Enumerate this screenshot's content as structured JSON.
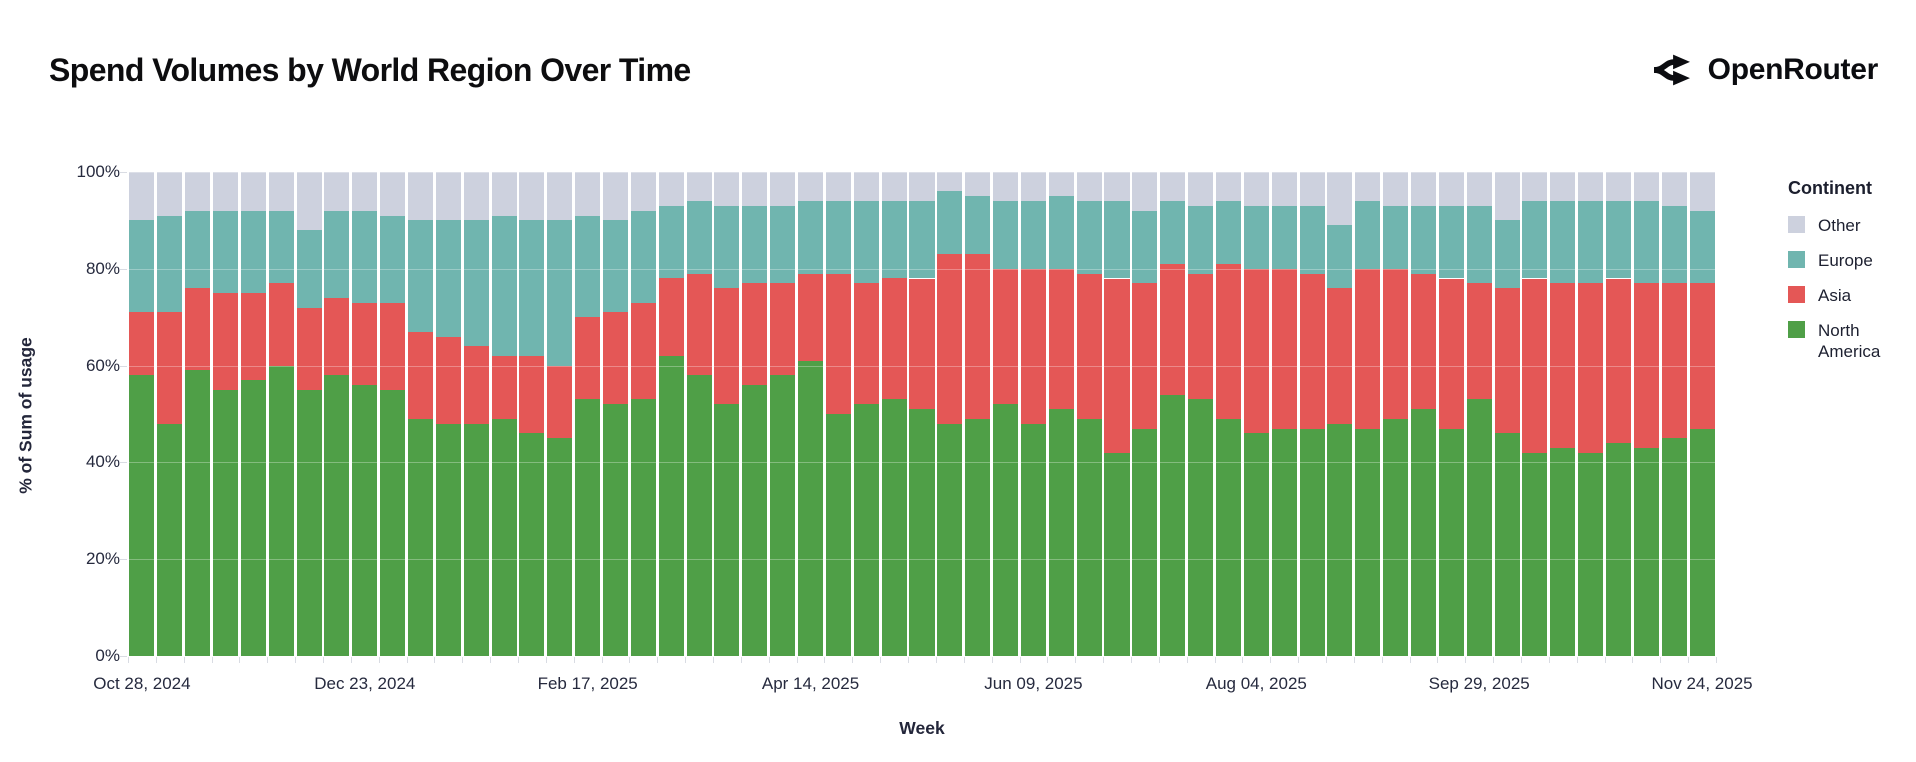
{
  "header": {
    "title": "Spend Volumes by World Region Over Time",
    "brand": "OpenRouter"
  },
  "chart_data": {
    "type": "bar",
    "stacked": true,
    "normalized_percent": true,
    "title": "Spend Volumes by World Region Over Time",
    "xlabel": "Week",
    "ylabel": "% of Sum of usage",
    "ylim": [
      0,
      100
    ],
    "grid": true,
    "legend_position": "right",
    "legend_title": "Continent",
    "y_ticks": [
      {
        "value": 0,
        "label": "0%"
      },
      {
        "value": 20,
        "label": "20%"
      },
      {
        "value": 40,
        "label": "40%"
      },
      {
        "value": 60,
        "label": "60%"
      },
      {
        "value": 80,
        "label": "80%"
      },
      {
        "value": 100,
        "label": "100%"
      }
    ],
    "x": [
      "Oct 28, 2024",
      "Nov 04, 2024",
      "Nov 11, 2024",
      "Nov 18, 2024",
      "Nov 25, 2024",
      "Dec 02, 2024",
      "Dec 09, 2024",
      "Dec 16, 2024",
      "Dec 23, 2024",
      "Dec 30, 2024",
      "Jan 06, 2025",
      "Jan 13, 2025",
      "Jan 20, 2025",
      "Jan 27, 2025",
      "Feb 03, 2025",
      "Feb 10, 2025",
      "Feb 17, 2025",
      "Feb 24, 2025",
      "Mar 03, 2025",
      "Mar 10, 2025",
      "Mar 17, 2025",
      "Mar 24, 2025",
      "Mar 31, 2025",
      "Apr 07, 2025",
      "Apr 14, 2025",
      "Apr 21, 2025",
      "Apr 28, 2025",
      "May 05, 2025",
      "May 12, 2025",
      "May 19, 2025",
      "May 26, 2025",
      "Jun 02, 2025",
      "Jun 09, 2025",
      "Jun 16, 2025",
      "Jun 23, 2025",
      "Jun 30, 2025",
      "Jul 07, 2025",
      "Jul 14, 2025",
      "Jul 21, 2025",
      "Jul 28, 2025",
      "Aug 04, 2025",
      "Aug 11, 2025",
      "Aug 18, 2025",
      "Aug 25, 2025",
      "Sep 01, 2025",
      "Sep 08, 2025",
      "Sep 15, 2025",
      "Sep 22, 2025",
      "Sep 29, 2025",
      "Oct 06, 2025",
      "Oct 13, 2025",
      "Oct 20, 2025",
      "Oct 27, 2025",
      "Nov 03, 2025",
      "Nov 10, 2025",
      "Nov 17, 2025",
      "Nov 24, 2025"
    ],
    "x_tick_indices": [
      0,
      8,
      16,
      24,
      32,
      40,
      48,
      56
    ],
    "x_tick_labels": [
      "Oct 28, 2024",
      "Dec 23, 2024",
      "Feb 17, 2025",
      "Apr 14, 2025",
      "Jun 09, 2025",
      "Aug 04, 2025",
      "Sep 29, 2025",
      "Nov 24, 2025"
    ],
    "series": [
      {
        "name": "North America",
        "color": "#4f9f47",
        "values": [
          58,
          48,
          59,
          55,
          57,
          60,
          55,
          58,
          56,
          55,
          49,
          48,
          48,
          49,
          46,
          45,
          53,
          52,
          53,
          62,
          58,
          52,
          56,
          58,
          61,
          50,
          52,
          53,
          51,
          48,
          49,
          52,
          48,
          51,
          49,
          42,
          47,
          54,
          53,
          49,
          46,
          47,
          47,
          48,
          47,
          49,
          51,
          47,
          53,
          46,
          42,
          43,
          42,
          44,
          43,
          45,
          47
        ]
      },
      {
        "name": "Asia",
        "color": "#e45756",
        "values": [
          13,
          23,
          17,
          20,
          18,
          17,
          17,
          16,
          17,
          18,
          18,
          18,
          16,
          13,
          16,
          15,
          17,
          19,
          20,
          16,
          21,
          24,
          21,
          19,
          18,
          29,
          25,
          25,
          27,
          35,
          34,
          28,
          32,
          29,
          30,
          36,
          30,
          27,
          26,
          32,
          34,
          33,
          32,
          28,
          33,
          31,
          28,
          31,
          24,
          30,
          36,
          34,
          35,
          34,
          34,
          32,
          30
        ]
      },
      {
        "name": "Europe",
        "color": "#70b5af",
        "values": [
          19,
          20,
          16,
          17,
          17,
          15,
          16,
          18,
          19,
          18,
          23,
          24,
          26,
          29,
          28,
          30,
          21,
          19,
          19,
          15,
          15,
          17,
          16,
          16,
          15,
          15,
          17,
          16,
          16,
          13,
          12,
          14,
          14,
          15,
          15,
          16,
          15,
          13,
          14,
          13,
          13,
          13,
          14,
          13,
          14,
          13,
          14,
          15,
          16,
          14,
          16,
          17,
          17,
          16,
          17,
          16,
          15
        ]
      },
      {
        "name": "Other",
        "color": "#cdd1de",
        "values": [
          10,
          9,
          8,
          8,
          8,
          8,
          12,
          8,
          8,
          9,
          10,
          10,
          10,
          9,
          10,
          10,
          9,
          10,
          8,
          7,
          6,
          7,
          7,
          7,
          6,
          6,
          6,
          6,
          6,
          4,
          5,
          6,
          6,
          5,
          6,
          6,
          8,
          6,
          7,
          6,
          7,
          7,
          7,
          11,
          6,
          7,
          7,
          7,
          7,
          10,
          6,
          6,
          6,
          6,
          6,
          7,
          8
        ]
      }
    ]
  },
  "legend": {
    "title": "Continent",
    "items": [
      {
        "label": "Other",
        "color": "#cdd1de"
      },
      {
        "label": "Europe",
        "color": "#70b5af"
      },
      {
        "label": "Asia",
        "color": "#e45756"
      },
      {
        "label": "North America",
        "color": "#4f9f47"
      }
    ]
  }
}
